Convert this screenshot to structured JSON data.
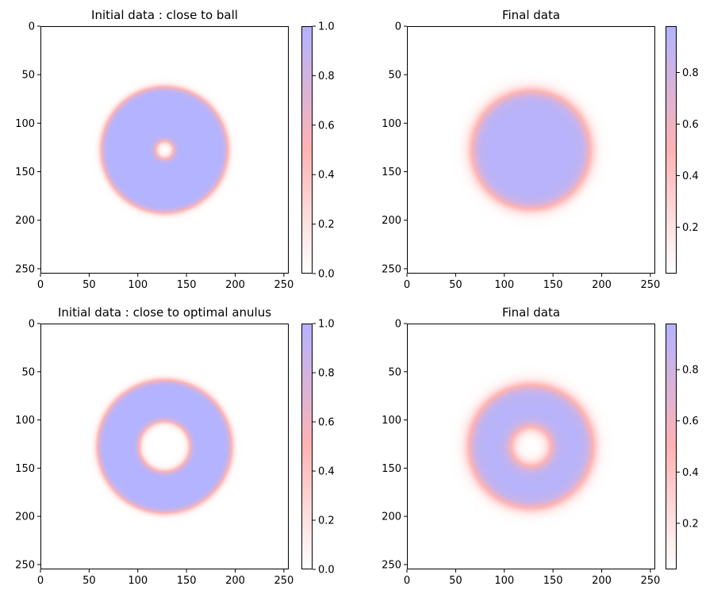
{
  "chart_data": [
    {
      "type": "heatmap",
      "title": "Initial data : close to ball",
      "xlim": [
        0,
        255
      ],
      "ylim": [
        255,
        0
      ],
      "xticks": [
        "0",
        "50",
        "100",
        "150",
        "200",
        "250"
      ],
      "yticks": [
        "0",
        "50",
        "100",
        "150",
        "200",
        "250"
      ],
      "field": {
        "shape": "annulus",
        "center": [
          127.5,
          127.5
        ],
        "outer_radius": 65,
        "inner_radius": 9,
        "edge_width": 1.8,
        "value": 1.0,
        "background": 0.0
      },
      "colormap": [
        "#ffffff",
        "#ffb3b3",
        "#b3b3ff"
      ],
      "colorbar": {
        "range": [
          0.0,
          1.0
        ],
        "ticks": [
          "0.0",
          "0.2",
          "0.4",
          "0.6",
          "0.8",
          "1.0"
        ]
      }
    },
    {
      "type": "heatmap",
      "title": "Final data",
      "xlim": [
        0,
        255
      ],
      "ylim": [
        255,
        0
      ],
      "xticks": [
        "0",
        "50",
        "100",
        "150",
        "200",
        "250"
      ],
      "yticks": [
        "0",
        "50",
        "100",
        "150",
        "200",
        "250"
      ],
      "field": {
        "shape": "disk",
        "center": [
          127.5,
          127.5
        ],
        "outer_radius": 61,
        "inner_radius": 0,
        "edge_width": 3.5,
        "value": 0.95,
        "background": 0.02
      },
      "colormap": [
        "#ffffff",
        "#ffb3b3",
        "#b3b3ff"
      ],
      "colorbar": {
        "range": [
          0.02,
          0.98
        ],
        "ticks": [
          "0.2",
          "0.4",
          "0.6",
          "0.8"
        ]
      }
    },
    {
      "type": "heatmap",
      "title": "Initial data : close to optimal anulus",
      "xlim": [
        0,
        255
      ],
      "ylim": [
        255,
        0
      ],
      "xticks": [
        "0",
        "50",
        "100",
        "150",
        "200",
        "250"
      ],
      "yticks": [
        "0",
        "50",
        "100",
        "150",
        "200",
        "250"
      ],
      "field": {
        "shape": "annulus",
        "center": [
          127.5,
          127.5
        ],
        "outer_radius": 69,
        "inner_radius": 26,
        "edge_width": 1.8,
        "value": 1.0,
        "background": 0.0
      },
      "colormap": [
        "#ffffff",
        "#ffb3b3",
        "#b3b3ff"
      ],
      "colorbar": {
        "range": [
          0.0,
          1.0
        ],
        "ticks": [
          "0.0",
          "0.2",
          "0.4",
          "0.6",
          "0.8",
          "1.0"
        ]
      }
    },
    {
      "type": "heatmap",
      "title": "Final data",
      "xlim": [
        0,
        255
      ],
      "ylim": [
        255,
        0
      ],
      "xticks": [
        "0",
        "50",
        "100",
        "150",
        "200",
        "250"
      ],
      "yticks": [
        "0",
        "50",
        "100",
        "150",
        "200",
        "250"
      ],
      "field": {
        "shape": "annulus",
        "center": [
          127.5,
          127.5
        ],
        "outer_radius": 64,
        "inner_radius": 20,
        "edge_width": 3.5,
        "value": 0.95,
        "background": 0.02
      },
      "colormap": [
        "#ffffff",
        "#ffb3b3",
        "#b3b3ff"
      ],
      "colorbar": {
        "range": [
          0.02,
          0.98
        ],
        "ticks": [
          "0.2",
          "0.4",
          "0.6",
          "0.8"
        ]
      }
    }
  ]
}
